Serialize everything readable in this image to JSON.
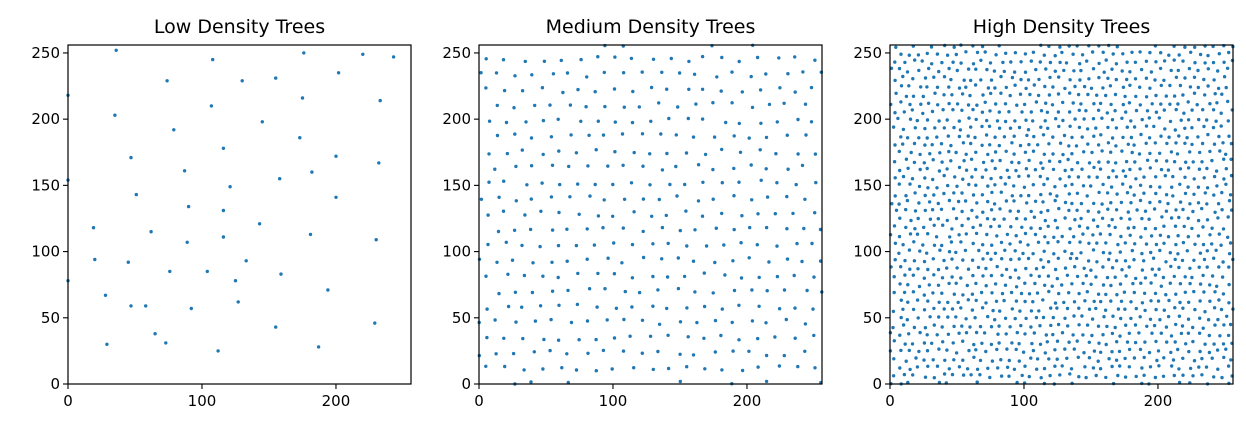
{
  "chart_data": [
    {
      "type": "scatter",
      "title": "Low Density Trees",
      "xlim": [
        0,
        256
      ],
      "ylim": [
        0,
        256
      ],
      "xticks": [
        0,
        100,
        200
      ],
      "yticks": [
        0,
        50,
        100,
        150,
        200,
        250
      ],
      "grid": false,
      "marker_color": "#1f77b4",
      "x": [
        0,
        36,
        108,
        130,
        155,
        176,
        220,
        243,
        74,
        0,
        107,
        175,
        202,
        233,
        35,
        79,
        116,
        145,
        173,
        47,
        200,
        232,
        87,
        121,
        0,
        51,
        158,
        182,
        200,
        90,
        116,
        143,
        62,
        230,
        19,
        89,
        116,
        181,
        20,
        45,
        76,
        104,
        133,
        159,
        28,
        194,
        58,
        92,
        127,
        47,
        125,
        65,
        155,
        229,
        73,
        29,
        187,
        112
      ],
      "y": [
        218,
        252,
        245,
        229,
        231,
        250,
        249,
        247,
        229,
        154,
        210,
        216,
        235,
        214,
        203,
        192,
        178,
        198,
        186,
        171,
        172,
        167,
        161,
        149,
        78,
        143,
        155,
        160,
        141,
        134,
        131,
        121,
        115,
        109,
        118,
        107,
        111,
        113,
        94,
        92,
        85,
        85,
        93,
        83,
        67,
        71,
        59,
        57,
        62,
        59,
        78,
        38,
        43,
        46,
        31,
        30,
        28,
        25
      ]
    },
    {
      "type": "scatter",
      "title": "Medium Density Trees",
      "xlim": [
        0,
        256
      ],
      "ylim": [
        0,
        256
      ],
      "xticks": [
        0,
        100,
        200
      ],
      "yticks": [
        0,
        50,
        100,
        150,
        200,
        250
      ],
      "grid": false,
      "marker_color": "#1f77b4"
    },
    {
      "type": "scatter",
      "title": "High Density Trees",
      "xlim": [
        0,
        256
      ],
      "ylim": [
        0,
        256
      ],
      "xticks": [
        0,
        100,
        200
      ],
      "yticks": [
        0,
        50,
        100,
        150,
        200,
        250
      ],
      "grid": false,
      "marker_color": "#1f77b4"
    }
  ]
}
